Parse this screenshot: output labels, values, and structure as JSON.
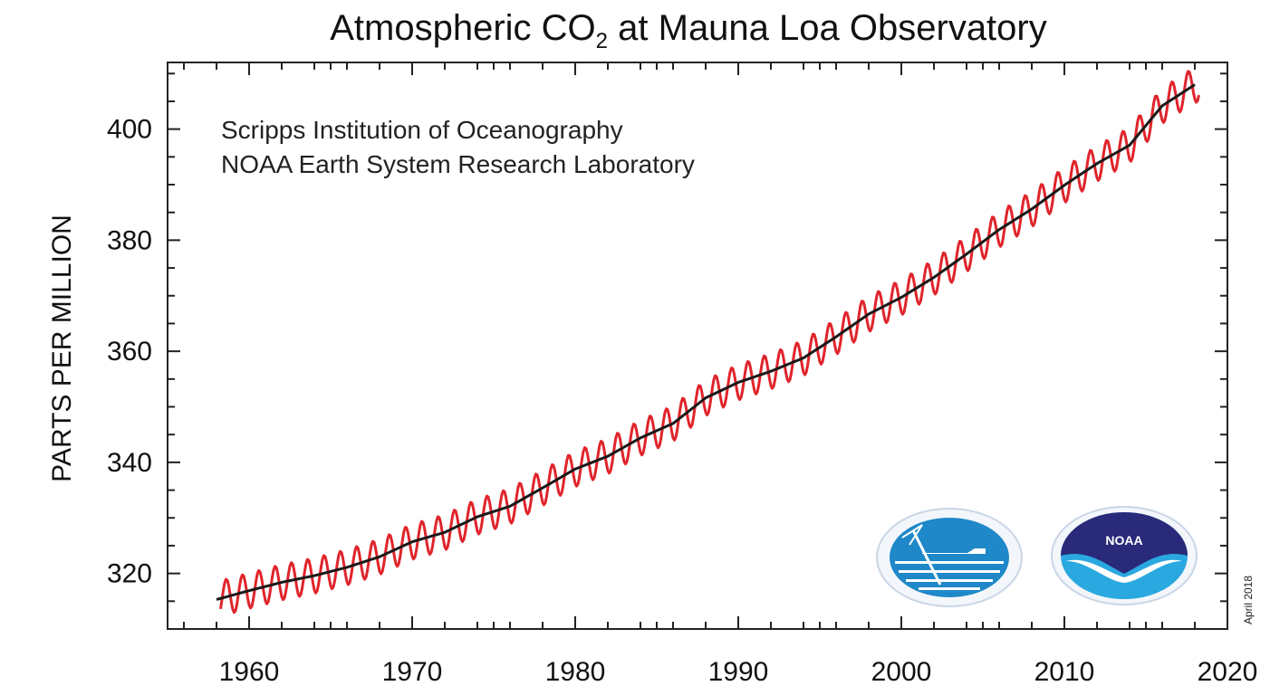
{
  "chart_data": {
    "type": "line",
    "title": "Atmospheric CO",
    "title_subscript": "2",
    "title_suffix": " at Mauna Loa Observatory",
    "xlabel": "",
    "ylabel": "PARTS PER MILLION",
    "xlim": [
      1955,
      2020
    ],
    "ylim": [
      310,
      412
    ],
    "x_ticks": [
      1960,
      1970,
      1980,
      1990,
      2000,
      2010,
      2020
    ],
    "y_ticks": [
      320,
      340,
      360,
      380,
      400
    ],
    "annotations": [
      "Scripps Institution of Oceanography",
      "NOAA Earth System Research Laboratory"
    ],
    "date_stamp": "April 2018",
    "grid": false,
    "series": [
      {
        "style": "monthly-seasonal",
        "color": "#e0242b",
        "seasonal_amplitude_ppm": 3.2,
        "x_range": [
          1958.25,
          2018.25
        ]
      },
      {
        "style": "trend",
        "color": "#1a1a1a",
        "x": [
          1958,
          1960,
          1962,
          1964,
          1966,
          1968,
          1970,
          1972,
          1974,
          1976,
          1978,
          1980,
          1982,
          1984,
          1986,
          1988,
          1990,
          1992,
          1994,
          1996,
          1998,
          2000,
          2002,
          2004,
          2006,
          2008,
          2010,
          2012,
          2014,
          2016,
          2018
        ],
        "y": [
          315.3,
          316.9,
          318.4,
          319.6,
          321.1,
          323.0,
          325.7,
          327.4,
          330.2,
          332.1,
          335.4,
          338.8,
          341.1,
          344.4,
          347.0,
          351.6,
          354.4,
          356.4,
          358.8,
          362.6,
          366.7,
          369.7,
          373.3,
          377.5,
          381.9,
          385.6,
          389.9,
          393.8,
          397.1,
          404.2,
          408.0
        ]
      }
    ],
    "logos": [
      {
        "name": "scripps-logo",
        "colors": [
          "#1e88c8",
          "#ffffff"
        ]
      },
      {
        "name": "noaa-logo",
        "colors": [
          "#2a2a7a",
          "#2aa8e0",
          "#ffffff"
        ],
        "text": "NOAA"
      }
    ]
  }
}
